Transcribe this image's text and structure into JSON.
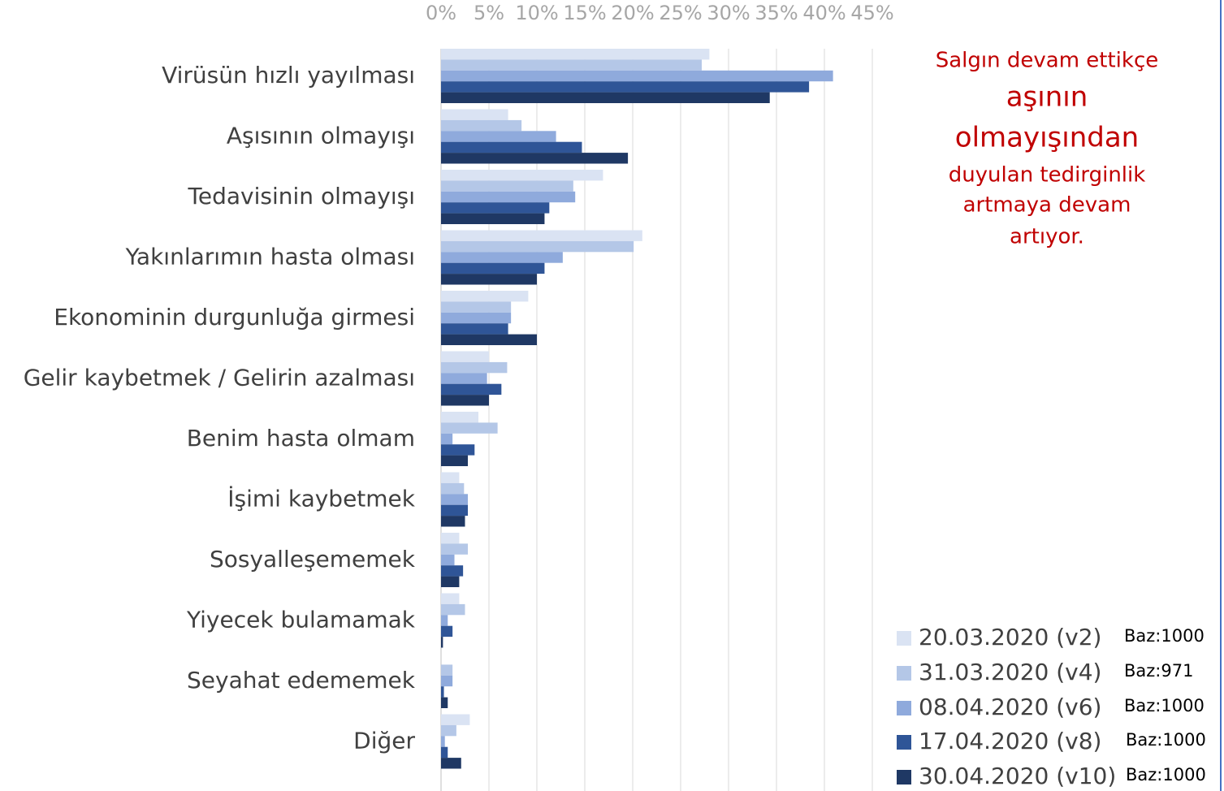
{
  "chart_data": {
    "type": "bar",
    "orientation": "horizontal",
    "categories": [
      "Virüsün hızlı yayılması",
      "Aşısının olmayışı",
      "Tedavisinin olmayışı",
      "Yakınlarımın hasta olması",
      "Ekonominin durgunluğa girmesi",
      "Gelir kaybetmek / Gelirin azalması",
      "Benim hasta olmam",
      "İşimi kaybetmek",
      "Sosyalleşememek",
      "Yiyecek bulamamak",
      "Seyahat edememek",
      "Diğer"
    ],
    "series": [
      {
        "name": "20.03.2020 (v2)",
        "color": "#dae3f3",
        "values": [
          28,
          7,
          16.9,
          21,
          9.1,
          5,
          3.9,
          1.9,
          1.9,
          1.9,
          0,
          3
        ]
      },
      {
        "name": "31.03.2020 (v4)",
        "color": "#b4c7e7",
        "values": [
          27.2,
          8.4,
          13.8,
          20.1,
          7.3,
          6.9,
          5.9,
          2.4,
          2.8,
          2.5,
          1.2,
          1.6
        ]
      },
      {
        "name": "08.04.2020 (v6)",
        "color": "#8faadc",
        "values": [
          40.9,
          12,
          14,
          12.7,
          7.3,
          4.8,
          1.2,
          2.8,
          1.4,
          0.7,
          1.2,
          0.4
        ]
      },
      {
        "name": "17.04.2020 (v8)",
        "color": "#2f5597",
        "values": [
          38.4,
          14.7,
          11.3,
          10.8,
          7,
          6.3,
          3.5,
          2.8,
          2.3,
          1.2,
          0.3,
          0.7
        ]
      },
      {
        "name": "30.04.2020 (v10)",
        "color": "#1f3864",
        "values": [
          34.3,
          19.5,
          10.8,
          10,
          10,
          5,
          2.8,
          2.5,
          1.9,
          0.2,
          0.7,
          2.1
        ]
      }
    ],
    "legend_notes": [
      "Baz:1000",
      "Baz:971",
      "Baz:1000",
      "Baz:1000",
      "Baz:1000"
    ],
    "annotation": [
      "Salgın devam ettikçe",
      "aşının",
      "olmayışından",
      "duyulan tedirginlik",
      "artmaya devam",
      "artıyor."
    ],
    "xlim": [
      0,
      45
    ],
    "xticks": [
      {
        "value": 0,
        "label": "0%"
      },
      {
        "value": 5,
        "label": "5%"
      },
      {
        "value": 10,
        "label": "10%"
      },
      {
        "value": 15,
        "label": "15%"
      },
      {
        "value": 20,
        "label": "20%"
      },
      {
        "value": 25,
        "label": "25%"
      },
      {
        "value": 30,
        "label": "30%"
      },
      {
        "value": 35,
        "label": "35%"
      },
      {
        "value": 40,
        "label": "40%"
      },
      {
        "value": 45,
        "label": "45%"
      }
    ],
    "grid": true,
    "legend": "lower right"
  }
}
